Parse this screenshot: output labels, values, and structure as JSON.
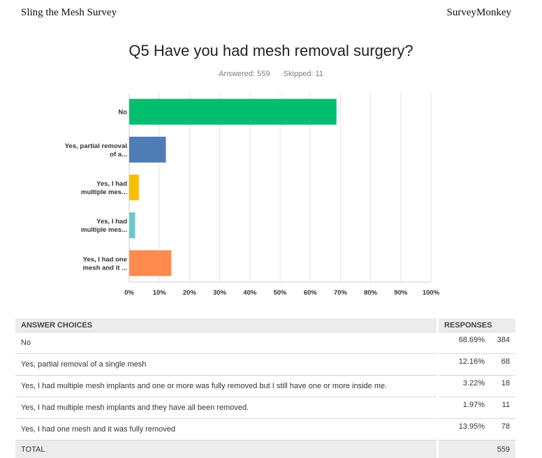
{
  "header": {
    "left": "Sling the Mesh Survey",
    "right": "SurveyMonkey"
  },
  "question": {
    "title": "Q5 Have you had mesh removal surgery?",
    "answered": "Answered: 559",
    "skipped": "Skipped: 11"
  },
  "chart_data": {
    "type": "bar",
    "orientation": "horizontal",
    "categories": [
      "No",
      "Yes, partial removal of a...",
      "Yes, I had multiple mes...",
      "Yes, I had multiple mes...",
      "Yes, I had one mesh and it ..."
    ],
    "values": [
      68.69,
      12.16,
      3.22,
      1.97,
      13.95
    ],
    "colors": [
      "#00bf6f",
      "#507cb6",
      "#f9be00",
      "#6bc8cd",
      "#ff8b4f"
    ],
    "xlim": [
      0,
      100
    ],
    "xticks": [
      "0%",
      "10%",
      "20%",
      "30%",
      "40%",
      "50%",
      "60%",
      "70%",
      "80%",
      "90%",
      "100%"
    ],
    "xlabel": "",
    "ylabel": "",
    "title": ""
  },
  "table": {
    "headers": {
      "choices": "ANSWER CHOICES",
      "responses": "RESPONSES"
    },
    "rows": [
      {
        "choice": "No",
        "percent": "68.69%",
        "count": "384"
      },
      {
        "choice": "Yes, partial removal of a single mesh",
        "percent": "12.16%",
        "count": "68"
      },
      {
        "choice": "Yes, I had multiple mesh implants and one or more was fully removed but I still have one or more inside me.",
        "percent": "3.22%",
        "count": "18"
      },
      {
        "choice": "Yes, I had multiple mesh implants and they have all been removed.",
        "percent": "1.97%",
        "count": "11"
      },
      {
        "choice": "Yes, I had one mesh and it was fully removed",
        "percent": "13.95%",
        "count": "78"
      }
    ],
    "total": {
      "label": "TOTAL",
      "count": "559"
    }
  }
}
